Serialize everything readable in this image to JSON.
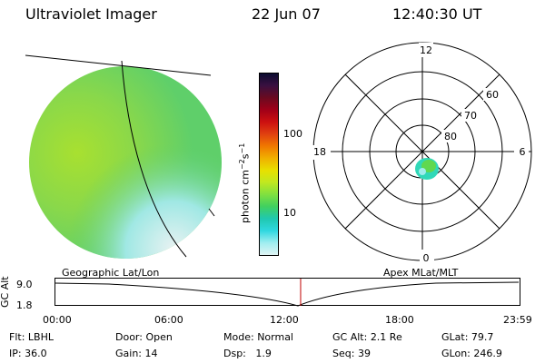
{
  "header": {
    "title": "Ultraviolet Imager",
    "date": "22 Jun 07",
    "time": "12:40:30 UT"
  },
  "colorbar": {
    "unit_label": "photon cm",
    "unit_exp1": "−2",
    "unit_mid": "s",
    "unit_exp2": "−1",
    "ticks": [
      "100",
      "10"
    ],
    "colors": [
      "#0b0b30",
      "#3a1040",
      "#6a0a20",
      "#a00018",
      "#cc1010",
      "#e04010",
      "#f07800",
      "#f0b000",
      "#e8e000",
      "#c0e820",
      "#80e040",
      "#40d060",
      "#20c8b0",
      "#30d8e0",
      "#a0eef0",
      "#e0f4f4"
    ]
  },
  "polar": {
    "mlt_labels": {
      "top": "12",
      "left": "18",
      "right": "6",
      "bottom": "0"
    },
    "lat_labels": [
      "60",
      "70",
      "80"
    ]
  },
  "timeline": {
    "left_title": "Geographic Lat/Lon",
    "right_title": "Apex MLat/MLT",
    "yaxis_label": "GC Alt",
    "y_ticks": [
      "9.0",
      "1.8"
    ],
    "x_ticks": [
      "00:00",
      "06:00",
      "12:00",
      "18:00",
      "23:59"
    ],
    "marker_time_hours": 12.68
  },
  "status": {
    "row1": [
      {
        "label": "Flt:",
        "value": "LBHL"
      },
      {
        "label": "Door:",
        "value": "Open"
      },
      {
        "label": "Mode:",
        "value": "Normal"
      },
      {
        "label": "GC Alt:",
        "value": "2.1 Re"
      },
      {
        "label": "GLat:",
        "value": "79.7"
      }
    ],
    "row2": [
      {
        "label": "IP:",
        "value": "36.0"
      },
      {
        "label": "Gain:",
        "value": "14"
      },
      {
        "label": "Dsp:",
        "value": "1.9"
      },
      {
        "label": "Seq:",
        "value": "39"
      },
      {
        "label": "GLon:",
        "value": "246.9"
      }
    ]
  }
}
